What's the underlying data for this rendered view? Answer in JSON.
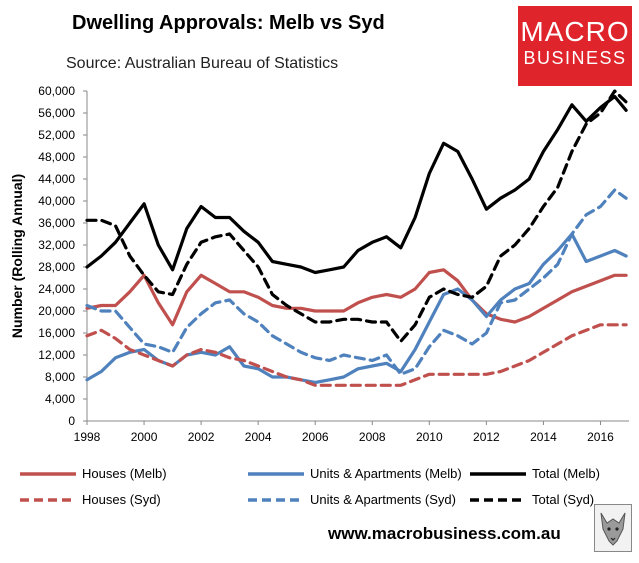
{
  "header": {
    "title": "Dwelling Approvals: Melb vs Syd",
    "source": "Source: Australian Bureau of Statistics",
    "logo_line1": "MACRO",
    "logo_line2": "BUSINESS",
    "logo_color": "#e0242c"
  },
  "footer": {
    "url": "www.macrobusiness.com.au",
    "icon": "wolf-logo-icon"
  },
  "chart_data": {
    "type": "line",
    "title": "Dwelling Approvals: Melb vs Syd",
    "xlabel": "",
    "ylabel": "Number (Rolling Annual)",
    "xlim": [
      1998,
      2017
    ],
    "ylim": [
      0,
      60000
    ],
    "x_ticks": [
      "1998",
      "2000",
      "2002",
      "2004",
      "2006",
      "2008",
      "2010",
      "2012",
      "2014",
      "2016"
    ],
    "y_ticks": [
      "0",
      "4,000",
      "8,000",
      "12,000",
      "16,000",
      "20,000",
      "24,000",
      "28,000",
      "32,000",
      "36,000",
      "40,000",
      "44,000",
      "48,000",
      "52,000",
      "56,000",
      "60,000"
    ],
    "grid": false,
    "legend_position": "bottom",
    "x": [
      1998.0,
      1998.5,
      1999.0,
      1999.5,
      2000.0,
      2000.5,
      2001.0,
      2001.5,
      2002.0,
      2002.5,
      2003.0,
      2003.5,
      2004.0,
      2004.5,
      2005.0,
      2005.5,
      2006.0,
      2006.5,
      2007.0,
      2007.5,
      2008.0,
      2008.5,
      2009.0,
      2009.5,
      2010.0,
      2010.5,
      2011.0,
      2011.5,
      2012.0,
      2012.5,
      2013.0,
      2013.5,
      2014.0,
      2014.5,
      2015.0,
      2015.5,
      2016.0,
      2016.5,
      2016.9
    ],
    "series": [
      {
        "name": "Houses (Melb)",
        "color": "#c0504d",
        "dash": "solid",
        "values": [
          20500,
          21000,
          21000,
          23500,
          26500,
          21500,
          17500,
          23500,
          26500,
          25000,
          23500,
          23500,
          22500,
          21000,
          20500,
          20500,
          20000,
          20000,
          20000,
          21500,
          22500,
          23000,
          22500,
          24000,
          27000,
          27500,
          25500,
          22000,
          19500,
          18500,
          18000,
          19000,
          20500,
          22000,
          23500,
          24500,
          25500,
          26500,
          26500
        ]
      },
      {
        "name": "Units & Apartments (Melb)",
        "color": "#4f81bd",
        "dash": "solid",
        "values": [
          7500,
          9000,
          11500,
          12500,
          13000,
          11000,
          10000,
          12000,
          12500,
          12000,
          13500,
          10000,
          9500,
          8000,
          8000,
          7500,
          7000,
          7500,
          8000,
          9500,
          10000,
          10500,
          9000,
          13000,
          18000,
          23000,
          24000,
          22000,
          19000,
          22000,
          24000,
          25000,
          28500,
          31000,
          34000,
          29000,
          30000,
          31000,
          30000
        ]
      },
      {
        "name": "Total (Melb)",
        "color": "#000000",
        "dash": "solid",
        "values": [
          28000,
          30000,
          32500,
          36000,
          39500,
          32000,
          27500,
          35000,
          39000,
          37000,
          37000,
          34500,
          32500,
          29000,
          28500,
          28000,
          27000,
          27500,
          28000,
          31000,
          32500,
          33500,
          31500,
          37000,
          45000,
          50500,
          49000,
          44000,
          38500,
          40500,
          42000,
          44000,
          49000,
          53000,
          57500,
          54500,
          57000,
          59000,
          56500
        ]
      },
      {
        "name": "Houses (Syd)",
        "color": "#c0504d",
        "dash": "dashed",
        "values": [
          15500,
          16500,
          15000,
          13000,
          12000,
          11000,
          10000,
          12000,
          13000,
          12500,
          11500,
          11000,
          10000,
          9000,
          8000,
          7500,
          6500,
          6500,
          6500,
          6500,
          6500,
          6500,
          6500,
          7500,
          8500,
          8500,
          8500,
          8500,
          8500,
          9000,
          10000,
          11000,
          12500,
          14000,
          15500,
          16500,
          17500,
          17500,
          17500
        ]
      },
      {
        "name": "Units & Apartments (Syd)",
        "color": "#4f81bd",
        "dash": "dashed",
        "values": [
          21000,
          20000,
          20000,
          17000,
          14000,
          13500,
          12500,
          17000,
          19500,
          21500,
          22000,
          19500,
          18000,
          15500,
          14000,
          12500,
          11500,
          11000,
          12000,
          11500,
          11000,
          12000,
          8500,
          9500,
          13500,
          16500,
          15500,
          14000,
          16000,
          21500,
          22000,
          24000,
          26000,
          28500,
          34000,
          37500,
          39000,
          42000,
          40500
        ]
      },
      {
        "name": "Total (Syd)",
        "color": "#000000",
        "dash": "dashed",
        "values": [
          36500,
          36500,
          35500,
          30000,
          26500,
          23500,
          23000,
          28500,
          32500,
          33500,
          34000,
          31000,
          28000,
          23000,
          21000,
          19500,
          18000,
          18000,
          18500,
          18500,
          18000,
          18000,
          14500,
          17500,
          22500,
          24000,
          23000,
          22500,
          24500,
          30000,
          32000,
          35000,
          39000,
          42500,
          49000,
          54000,
          56000,
          60000,
          58000
        ]
      }
    ]
  }
}
